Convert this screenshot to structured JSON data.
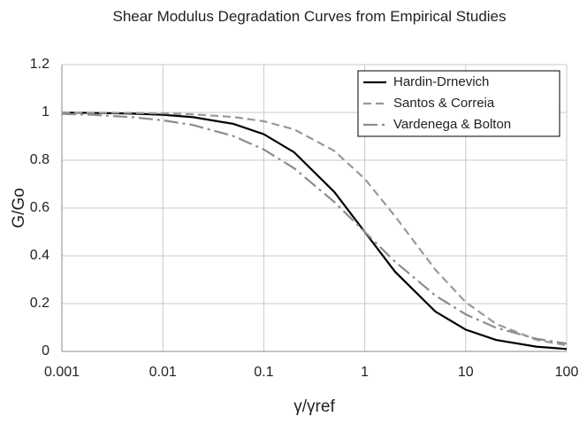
{
  "chart_data": {
    "type": "line",
    "title": "Shear Modulus Degradation Curves from Empirical Studies",
    "xlabel": "γ/γref",
    "ylabel": "G/Go",
    "xscale": "log",
    "x": [
      0.001,
      0.002,
      0.005,
      0.01,
      0.02,
      0.05,
      0.1,
      0.2,
      0.5,
      1,
      2,
      5,
      10,
      20,
      50,
      100
    ],
    "series": [
      {
        "name": "Hardin-Drnevich",
        "color": "#000000",
        "dash": "solid",
        "values": [
          0.999,
          0.998,
          0.995,
          0.99,
          0.98,
          0.952,
          0.909,
          0.833,
          0.667,
          0.5,
          0.333,
          0.167,
          0.091,
          0.048,
          0.02,
          0.01
        ]
      },
      {
        "name": "Santos & Correia",
        "color": "#999999",
        "dash": "dashed",
        "values": [
          1.0,
          0.999,
          0.998,
          0.996,
          0.992,
          0.981,
          0.963,
          0.929,
          0.839,
          0.722,
          0.565,
          0.342,
          0.206,
          0.115,
          0.049,
          0.025
        ]
      },
      {
        "name": "Vardenega & Bolton",
        "color": "#8c8c8c",
        "dash": "dashdot",
        "values": [
          0.994,
          0.99,
          0.98,
          0.967,
          0.947,
          0.901,
          0.845,
          0.766,
          0.625,
          0.5,
          0.375,
          0.234,
          0.155,
          0.099,
          0.053,
          0.033
        ]
      }
    ],
    "xlim": [
      0.001,
      100
    ],
    "xticks": [
      0.001,
      0.01,
      0.1,
      1,
      10,
      100
    ],
    "ylim": [
      0,
      1.2
    ],
    "yticks": [
      0,
      0.2,
      0.4,
      0.6,
      0.8,
      1,
      1.2
    ],
    "grid": true,
    "legend": "top-right"
  }
}
